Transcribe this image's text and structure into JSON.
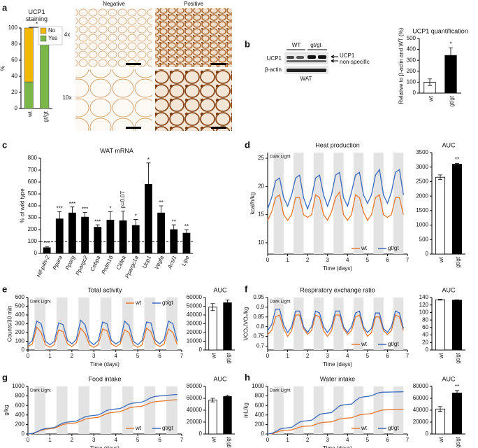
{
  "figure": {
    "micrographs": {
      "columns": [
        "Negative",
        "Positive"
      ],
      "rows": [
        "4x",
        "10x"
      ]
    },
    "blot": {
      "lanes": [
        "WT",
        "gt/gt"
      ],
      "rows": [
        "UCP1",
        "β-actin"
      ],
      "tissue": "WAT",
      "arrows": [
        "UCP1",
        "non-specific"
      ]
    }
  },
  "chart_data": [
    {
      "type": "stacked_bar",
      "panel": "a",
      "title": "UCP1 staining",
      "ylabel": "%",
      "categories": [
        "wt",
        "gt/gt"
      ],
      "series": [
        {
          "name": "Yes",
          "color": "#7ab648",
          "values": [
            33,
            82
          ]
        },
        {
          "name": "No",
          "color": "#f5b800",
          "values": [
            67,
            18
          ]
        }
      ],
      "ylim": [
        0,
        100
      ],
      "yticks": [
        0,
        20,
        40,
        60,
        80,
        100
      ],
      "annotation": "*",
      "legend": "upper right"
    },
    {
      "type": "bar",
      "panel": "b",
      "title": "UCP1 quantification",
      "ylabel": "Relative to β-actin and WT (%)",
      "categories": [
        "wt",
        "gt/gt"
      ],
      "values": [
        100,
        345
      ],
      "errors": [
        30,
        70
      ],
      "colors": [
        "#ffffff",
        "#000000"
      ],
      "ylim": [
        0,
        500
      ],
      "yticks": [
        0,
        100,
        200,
        300,
        400,
        500
      ],
      "annotation": "*"
    },
    {
      "type": "bar",
      "panel": "c",
      "title": "WAT mRNA",
      "ylabel": "% of wild type",
      "categories": [
        "Hif-p4h-2",
        "Ppara",
        "Pparg",
        "Ppargc2",
        "Cebpa",
        "Prdm16",
        "Cidea",
        "Ppargc1a",
        "Ucp1",
        "Vegfa",
        "Acsl1",
        "Lipe"
      ],
      "values": [
        48,
        290,
        340,
        305,
        220,
        280,
        275,
        235,
        580,
        340,
        200,
        170
      ],
      "errors": [
        10,
        60,
        50,
        40,
        20,
        70,
        80,
        50,
        180,
        60,
        40,
        30
      ],
      "annotations": [
        "***",
        "***",
        "***",
        "***",
        "***",
        "*",
        "p=0.07",
        "*",
        "*",
        "**",
        "**",
        "**"
      ],
      "color": "#000000",
      "reference_line": 100,
      "ylim": [
        0,
        800
      ],
      "yticks": [
        0,
        100,
        200,
        300,
        400,
        500,
        600,
        700,
        800
      ]
    },
    {
      "type": "line",
      "panel": "d",
      "title": "Heat production",
      "ylabel": "kcal/h/kg",
      "xlabel": "Time (days)",
      "band_label": "Dark Light",
      "legend": "lower right",
      "x": [
        0,
        0.2,
        0.4,
        0.6,
        0.8,
        1,
        1.2,
        1.4,
        1.6,
        1.8,
        2,
        2.2,
        2.4,
        2.6,
        2.8,
        3,
        3.2,
        3.4,
        3.6,
        3.8,
        4,
        4.2,
        4.4,
        4.6,
        4.8,
        5,
        5.2,
        5.4,
        5.6,
        5.8,
        6,
        6.2,
        6.4,
        6.6,
        6.8
      ],
      "dark_periods": [
        [
          0.3,
          0.8
        ],
        [
          1.3,
          1.8
        ],
        [
          2.3,
          2.8
        ],
        [
          3.3,
          3.8
        ],
        [
          4.3,
          4.8
        ],
        [
          5.3,
          5.8
        ],
        [
          6.3,
          6.8
        ]
      ],
      "series": [
        {
          "name": "wt",
          "color": "#e8782e",
          "values": [
            14,
            15.5,
            18,
            18.5,
            15,
            14,
            15,
            18,
            18,
            15,
            14.5,
            15,
            18.5,
            18,
            15,
            14,
            15.5,
            18,
            19,
            15,
            14,
            15,
            18.5,
            18,
            15.5,
            14,
            15,
            18,
            18.5,
            15,
            14.5,
            15,
            18,
            18,
            15
          ]
        },
        {
          "name": "gt/gt",
          "color": "#3a6bbf",
          "values": [
            16,
            18,
            21,
            21.5,
            18,
            16.5,
            18.5,
            21.5,
            22,
            18,
            16,
            18,
            21.5,
            22,
            18.5,
            16.5,
            18.5,
            22,
            22.5,
            18,
            16.5,
            19,
            22,
            22.5,
            18.5,
            17,
            18.5,
            22,
            23,
            18.5,
            17,
            19,
            22.5,
            23,
            18.5
          ]
        }
      ],
      "xlim": [
        0,
        7
      ],
      "xticks": [
        0,
        1,
        2,
        3,
        4,
        5,
        6,
        7
      ],
      "ylim": [
        8,
        26
      ],
      "yticks": [
        10,
        15,
        20,
        25
      ]
    },
    {
      "type": "bar",
      "title": "AUC",
      "categories": [
        "wt",
        "gt/gt"
      ],
      "values": [
        2650,
        3100
      ],
      "errors": [
        80,
        30
      ],
      "colors": [
        "#ffffff",
        "#000000"
      ],
      "ylim": [
        0,
        3500
      ],
      "yticks": [
        0,
        500,
        1000,
        1500,
        2000,
        2500,
        3000,
        3500
      ],
      "annotation": "**"
    },
    {
      "type": "line",
      "panel": "e",
      "title": "Total activity",
      "ylabel": "Counts/30 min",
      "xlabel": "Time (days)",
      "band_label": "Dark Light",
      "legend": "upper right",
      "x": [
        0,
        0.2,
        0.4,
        0.6,
        0.8,
        1,
        1.2,
        1.4,
        1.6,
        1.8,
        2,
        2.2,
        2.4,
        2.6,
        2.8,
        3,
        3.2,
        3.4,
        3.6,
        3.8,
        4,
        4.2,
        4.4,
        4.6,
        4.8,
        5,
        5.2,
        5.4,
        5.6,
        5.8,
        6,
        6.2,
        6.4,
        6.6,
        6.8
      ],
      "dark_periods": [
        [
          0.3,
          0.8
        ],
        [
          1.3,
          1.8
        ],
        [
          2.3,
          2.8
        ],
        [
          3.3,
          3.8
        ],
        [
          4.3,
          4.8
        ],
        [
          5.3,
          5.8
        ],
        [
          6.3,
          6.8
        ]
      ],
      "series": [
        {
          "name": "wt",
          "color": "#e8782e",
          "values": [
            40,
            70,
            260,
            200,
            60,
            30,
            60,
            230,
            210,
            70,
            40,
            80,
            250,
            190,
            60,
            30,
            60,
            240,
            220,
            70,
            40,
            70,
            230,
            200,
            60,
            30,
            60,
            250,
            210,
            70,
            40,
            70,
            240,
            200,
            60
          ]
        },
        {
          "name": "gt/gt",
          "color": "#3a6bbf",
          "values": [
            60,
            110,
            330,
            300,
            100,
            60,
            100,
            310,
            290,
            110,
            70,
            120,
            340,
            290,
            100,
            60,
            110,
            320,
            300,
            110,
            70,
            100,
            330,
            280,
            100,
            60,
            110,
            320,
            310,
            110,
            70,
            120,
            330,
            300,
            100
          ]
        }
      ],
      "xlim": [
        0,
        7
      ],
      "xticks": [
        0,
        1,
        2,
        3,
        4,
        5,
        6,
        7
      ],
      "ylim": [
        0,
        600
      ],
      "yticks": [
        0,
        100,
        200,
        300,
        400,
        500,
        600
      ]
    },
    {
      "type": "bar",
      "title": "AUC",
      "categories": [
        "wt",
        "gt/gt"
      ],
      "values": [
        49000,
        54000
      ],
      "errors": [
        4000,
        3000
      ],
      "colors": [
        "#ffffff",
        "#000000"
      ],
      "ylim": [
        0,
        60000
      ],
      "yticks": [
        0,
        10000,
        20000,
        30000,
        40000,
        50000,
        60000
      ]
    },
    {
      "type": "line",
      "panel": "f",
      "title": "Respiratory exchange ratio",
      "ylabel": "VCO₂/VO₂/kg",
      "xlabel": "Time (days)",
      "band_label": "Dark Light",
      "legend": "lower right",
      "x": [
        0,
        0.2,
        0.4,
        0.6,
        0.8,
        1,
        1.2,
        1.4,
        1.6,
        1.8,
        2,
        2.2,
        2.4,
        2.6,
        2.8,
        3,
        3.2,
        3.4,
        3.6,
        3.8,
        4,
        4.2,
        4.4,
        4.6,
        4.8,
        5,
        5.2,
        5.4,
        5.6,
        5.8,
        6,
        6.2,
        6.4,
        6.6,
        6.8
      ],
      "dark_periods": [
        [
          0.3,
          0.8
        ],
        [
          1.3,
          1.8
        ],
        [
          2.3,
          2.8
        ],
        [
          3.3,
          3.8
        ],
        [
          4.3,
          4.8
        ],
        [
          5.3,
          5.8
        ],
        [
          6.3,
          6.8
        ]
      ],
      "series": [
        {
          "name": "wt",
          "color": "#e8782e",
          "values": [
            0.76,
            0.78,
            0.85,
            0.86,
            0.79,
            0.75,
            0.78,
            0.86,
            0.86,
            0.79,
            0.76,
            0.78,
            0.86,
            0.85,
            0.78,
            0.75,
            0.78,
            0.86,
            0.86,
            0.79,
            0.76,
            0.78,
            0.85,
            0.86,
            0.79,
            0.75,
            0.77,
            0.85,
            0.85,
            0.78,
            0.76,
            0.78,
            0.86,
            0.85,
            0.78
          ]
        },
        {
          "name": "gt/gt",
          "color": "#3a6bbf",
          "values": [
            0.78,
            0.81,
            0.89,
            0.89,
            0.81,
            0.77,
            0.8,
            0.88,
            0.88,
            0.8,
            0.77,
            0.8,
            0.88,
            0.87,
            0.8,
            0.77,
            0.8,
            0.88,
            0.88,
            0.8,
            0.77,
            0.8,
            0.87,
            0.88,
            0.8,
            0.77,
            0.79,
            0.87,
            0.87,
            0.79,
            0.77,
            0.8,
            0.88,
            0.87,
            0.79
          ]
        }
      ],
      "xlim": [
        0,
        7
      ],
      "xticks": [
        0,
        1,
        2,
        3,
        4,
        5,
        6,
        7
      ],
      "ylim": [
        0.68,
        0.95
      ],
      "yticks": [
        0.7,
        0.75,
        0.8,
        0.85,
        0.9,
        0.95
      ]
    },
    {
      "type": "bar",
      "title": "AUC",
      "categories": [
        "wt",
        "gt/gt"
      ],
      "values": [
        134,
        133
      ],
      "errors": [
        1,
        1
      ],
      "colors": [
        "#ffffff",
        "#000000"
      ],
      "ylim": [
        0,
        140
      ],
      "yticks": [
        0,
        20,
        40,
        60,
        80,
        100,
        120,
        140
      ]
    },
    {
      "type": "line",
      "panel": "g",
      "title": "Food intake",
      "ylabel": "g/kg",
      "xlabel": "Time (days)",
      "band_label": "Dark Light",
      "legend": "lower right",
      "x": [
        0,
        0.2,
        0.4,
        0.6,
        0.8,
        1,
        1.2,
        1.4,
        1.6,
        1.8,
        2,
        2.2,
        2.4,
        2.6,
        2.8,
        3,
        3.2,
        3.4,
        3.6,
        3.8,
        4,
        4.2,
        4.4,
        4.6,
        4.8,
        5,
        5.2,
        5.4,
        5.6,
        5.8,
        6,
        6.2,
        6.4,
        6.6,
        6.8
      ],
      "dark_periods": [
        [
          0.3,
          0.8
        ],
        [
          1.3,
          1.8
        ],
        [
          2.3,
          2.8
        ],
        [
          3.3,
          3.8
        ],
        [
          4.3,
          4.8
        ],
        [
          5.3,
          5.8
        ],
        [
          6.3,
          6.8
        ]
      ],
      "series": [
        {
          "name": "wt",
          "color": "#e8782e",
          "values": [
            0,
            10,
            40,
            80,
            100,
            110,
            120,
            160,
            200,
            215,
            225,
            235,
            270,
            310,
            330,
            340,
            350,
            390,
            430,
            450,
            460,
            470,
            505,
            545,
            565,
            575,
            585,
            620,
            660,
            680,
            690,
            695,
            705,
            715,
            720
          ]
        },
        {
          "name": "gt/gt",
          "color": "#3a6bbf",
          "values": [
            0,
            10,
            45,
            90,
            115,
            125,
            135,
            185,
            230,
            250,
            260,
            270,
            315,
            360,
            380,
            390,
            400,
            445,
            495,
            515,
            525,
            535,
            580,
            630,
            650,
            660,
            670,
            715,
            765,
            790,
            800,
            805,
            815,
            825,
            830
          ]
        }
      ],
      "xlim": [
        0,
        7
      ],
      "xticks": [
        0,
        1,
        2,
        3,
        4,
        5,
        6,
        7
      ],
      "ylim": [
        0,
        1000
      ],
      "yticks": [
        0,
        200,
        400,
        600,
        800,
        1000
      ]
    },
    {
      "type": "bar",
      "title": "AUC",
      "categories": [
        "wt",
        "gt/gt"
      ],
      "values": [
        57000,
        63000
      ],
      "errors": [
        3000,
        2000
      ],
      "colors": [
        "#ffffff",
        "#000000"
      ],
      "ylim": [
        0,
        80000
      ],
      "yticks": [
        0,
        20000,
        40000,
        60000,
        80000
      ]
    },
    {
      "type": "line",
      "panel": "h",
      "title": "Water intake",
      "ylabel": "mL/kg",
      "xlabel": "Time (days)",
      "band_label": "Dark Light",
      "legend": "lower right",
      "x": [
        0,
        0.2,
        0.4,
        0.6,
        0.8,
        1,
        1.2,
        1.4,
        1.6,
        1.8,
        2,
        2.2,
        2.4,
        2.6,
        2.8,
        3,
        3.2,
        3.4,
        3.6,
        3.8,
        4,
        4.2,
        4.4,
        4.6,
        4.8,
        5,
        5.2,
        5.4,
        5.6,
        5.8,
        6,
        6.2,
        6.4,
        6.6,
        6.8
      ],
      "dark_periods": [
        [
          0.3,
          0.8
        ],
        [
          1.3,
          1.8
        ],
        [
          2.3,
          2.8
        ],
        [
          3.3,
          3.8
        ],
        [
          4.3,
          4.8
        ],
        [
          5.3,
          5.8
        ],
        [
          6.3,
          6.8
        ]
      ],
      "series": [
        {
          "name": "wt",
          "color": "#e8782e",
          "values": [
            0,
            5,
            30,
            60,
            75,
            80,
            85,
            115,
            145,
            160,
            165,
            170,
            200,
            230,
            245,
            250,
            255,
            285,
            315,
            330,
            335,
            340,
            370,
            400,
            415,
            420,
            430,
            460,
            490,
            505,
            510,
            512,
            515,
            518,
            520
          ]
        },
        {
          "name": "gt/gt",
          "color": "#3a6bbf",
          "values": [
            0,
            10,
            50,
            100,
            120,
            130,
            140,
            195,
            250,
            270,
            280,
            290,
            350,
            410,
            430,
            440,
            450,
            520,
            590,
            610,
            620,
            630,
            700,
            760,
            780,
            790,
            805,
            840,
            870,
            880,
            880,
            882,
            884,
            886,
            888
          ]
        }
      ],
      "xlim": [
        0,
        7
      ],
      "xticks": [
        0,
        1,
        2,
        3,
        4,
        5,
        6,
        7
      ],
      "ylim": [
        0,
        1000
      ],
      "yticks": [
        0,
        200,
        400,
        600,
        800,
        1000
      ]
    },
    {
      "type": "bar",
      "title": "AUC",
      "categories": [
        "wt",
        "gt/gt"
      ],
      "values": [
        42000,
        69000
      ],
      "errors": [
        4000,
        4000
      ],
      "colors": [
        "#ffffff",
        "#000000"
      ],
      "ylim": [
        0,
        80000
      ],
      "yticks": [
        0,
        20000,
        40000,
        60000,
        80000
      ],
      "annotation": "**"
    }
  ]
}
